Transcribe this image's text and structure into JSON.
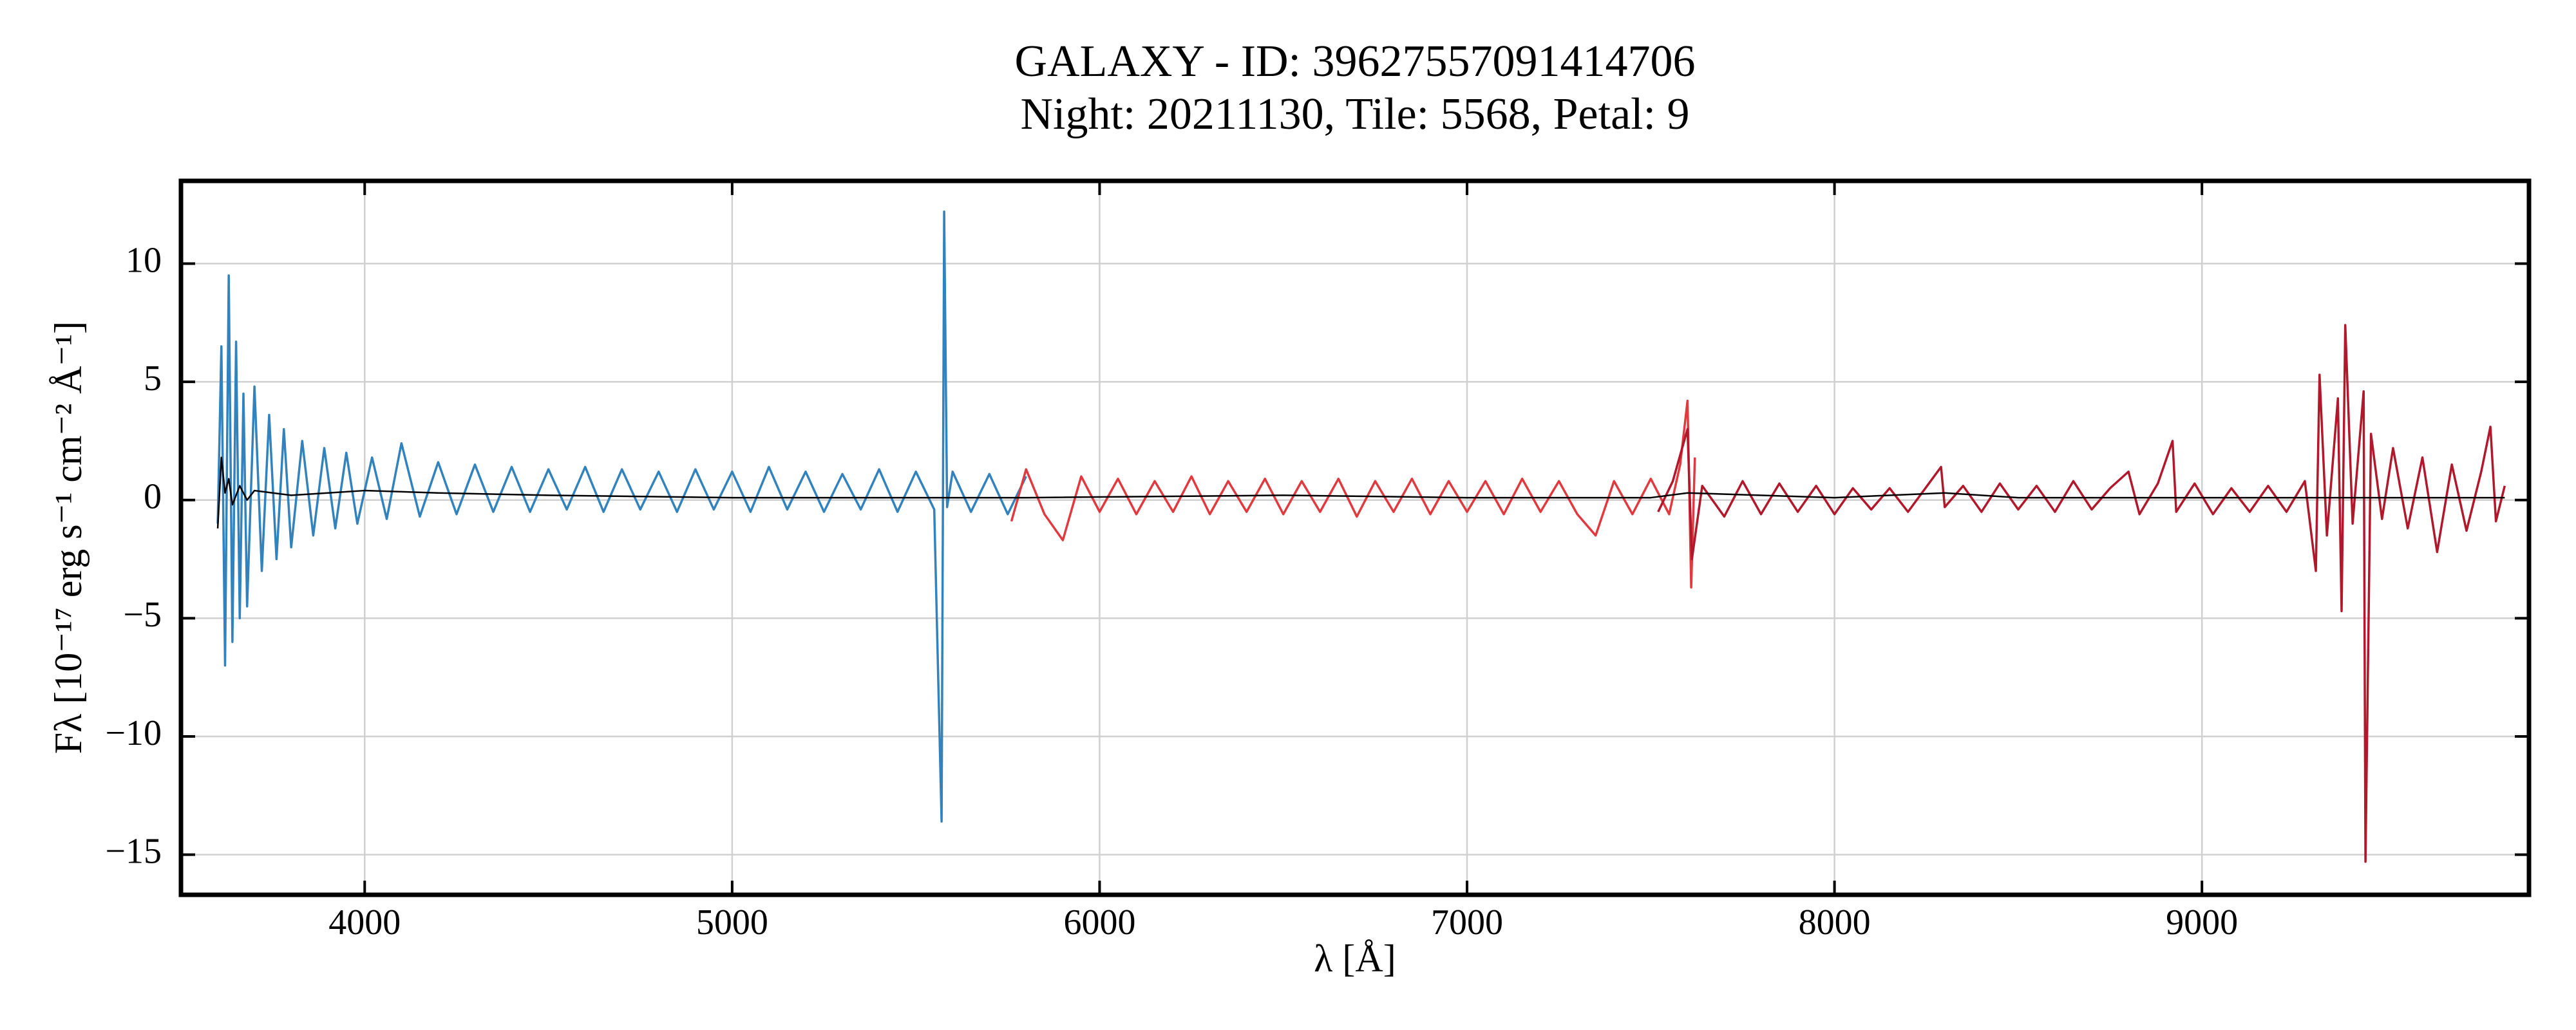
{
  "chart_data": {
    "type": "line",
    "title": "GALAXY - ID: 39627557091414706",
    "subtitle": "Night: 20211130, Tile: 5568, Petal: 9",
    "x_label": "λ [Å]",
    "y_label": "Fλ [10⁻¹⁷ erg s⁻¹ cm⁻² Å⁻¹]",
    "xlim": [
      3500,
      9890
    ],
    "ylim": [
      -16.7,
      13.5
    ],
    "xticks": [
      4000,
      5000,
      6000,
      7000,
      8000,
      9000
    ],
    "yticks": [
      {
        "value": -15,
        "label": "−15"
      },
      {
        "value": -10,
        "label": "−10"
      },
      {
        "value": -5,
        "label": "−5"
      },
      0,
      5,
      10
    ],
    "grid": true,
    "series": [
      {
        "color": "#3182bd",
        "x": [
          3600,
          3610,
          3620,
          3630,
          3640,
          3650,
          3660,
          3670,
          3680,
          3700,
          3720,
          3740,
          3760,
          3780,
          3800,
          3830,
          3860,
          3890,
          3920,
          3950,
          3980,
          4020,
          4060,
          4100,
          4150,
          4200,
          4250,
          4300,
          4350,
          4400,
          4450,
          4500,
          4550,
          4600,
          4650,
          4700,
          4750,
          4800,
          4850,
          4900,
          4950,
          5000,
          5050,
          5100,
          5150,
          5200,
          5250,
          5300,
          5350,
          5400,
          5450,
          5500,
          5550,
          5570,
          5577,
          5585,
          5600,
          5650,
          5700,
          5750,
          5800
        ],
        "values": [
          -1,
          6.5,
          -7,
          9.5,
          -6,
          6.7,
          -5,
          4.5,
          -4.5,
          4.8,
          -3,
          3.6,
          -2.5,
          3,
          -2,
          2.5,
          -1.5,
          2.2,
          -1.2,
          2,
          -1,
          1.8,
          -0.8,
          2.4,
          -0.7,
          1.6,
          -0.6,
          1.5,
          -0.5,
          1.4,
          -0.5,
          1.3,
          -0.4,
          1.4,
          -0.5,
          1.3,
          -0.4,
          1.2,
          -0.5,
          1.3,
          -0.4,
          1.2,
          -0.5,
          1.4,
          -0.4,
          1.2,
          -0.5,
          1.1,
          -0.4,
          1.3,
          -0.5,
          1.2,
          -0.4,
          -13.6,
          12.2,
          -0.3,
          1.2,
          -0.5,
          1.1,
          -0.6,
          1
        ]
      },
      {
        "color": "#e0393e",
        "x": [
          5760,
          5800,
          5850,
          5900,
          5950,
          6000,
          6050,
          6100,
          6150,
          6200,
          6250,
          6300,
          6350,
          6400,
          6450,
          6500,
          6550,
          6600,
          6650,
          6700,
          6750,
          6800,
          6850,
          6900,
          6950,
          7000,
          7050,
          7100,
          7150,
          7200,
          7250,
          7300,
          7350,
          7400,
          7450,
          7500,
          7550,
          7580,
          7600,
          7610,
          7620
        ],
        "values": [
          -0.9,
          1.3,
          -0.6,
          -1.7,
          1.0,
          -0.5,
          0.9,
          -0.6,
          0.8,
          -0.5,
          1.0,
          -0.6,
          0.8,
          -0.5,
          0.9,
          -0.6,
          0.8,
          -0.5,
          0.9,
          -0.7,
          0.8,
          -0.5,
          0.9,
          -0.6,
          0.8,
          -0.5,
          0.8,
          -0.6,
          0.9,
          -0.5,
          0.8,
          -0.6,
          -1.5,
          0.8,
          -0.6,
          0.9,
          -0.6,
          1.5,
          4.2,
          -3.7,
          1.8
        ]
      },
      {
        "color": "#b2182b",
        "x": [
          7520,
          7560,
          7600,
          7612,
          7640,
          7700,
          7750,
          7800,
          7850,
          7900,
          7950,
          8000,
          8050,
          8100,
          8150,
          8200,
          8290,
          8300,
          8350,
          8400,
          8450,
          8500,
          8550,
          8600,
          8650,
          8700,
          8750,
          8800,
          8830,
          8880,
          8920,
          8930,
          8980,
          9030,
          9080,
          9130,
          9180,
          9230,
          9280,
          9310,
          9320,
          9340,
          9370,
          9380,
          9390,
          9410,
          9440,
          9445,
          9460,
          9490,
          9520,
          9560,
          9600,
          9640,
          9680,
          9720,
          9760,
          9785,
          9800,
          9824
        ],
        "values": [
          -0.5,
          0.8,
          3.0,
          -2.5,
          0.6,
          -0.7,
          0.8,
          -0.6,
          0.7,
          -0.5,
          0.6,
          -0.6,
          0.5,
          -0.4,
          0.5,
          -0.5,
          1.4,
          -0.3,
          0.6,
          -0.5,
          0.7,
          -0.4,
          0.6,
          -0.5,
          0.8,
          -0.4,
          0.5,
          1.2,
          -0.6,
          0.7,
          2.5,
          -0.5,
          0.7,
          -0.6,
          0.5,
          -0.5,
          0.6,
          -0.5,
          0.8,
          -3,
          5.3,
          -1.5,
          4.3,
          -4.7,
          7.4,
          -1,
          4.6,
          -15.3,
          2.8,
          -0.8,
          2.2,
          -1.2,
          1.8,
          -2.2,
          1.5,
          -1.3,
          1.2,
          3.1,
          -0.9,
          0.6
        ]
      },
      {
        "color": "#000000",
        "x": [
          3600,
          3610,
          3620,
          3630,
          3640,
          3660,
          3680,
          3700,
          3750,
          3800,
          3900,
          4000,
          4200,
          4500,
          5000,
          5500,
          5800,
          6500,
          7000,
          7500,
          7600,
          8000,
          8300,
          8500,
          9000,
          9500,
          9824
        ],
        "values": [
          -1.2,
          1.8,
          0.3,
          0.9,
          -0.2,
          0.6,
          0,
          0.4,
          0.3,
          0.2,
          0.3,
          0.4,
          0.3,
          0.2,
          0.1,
          0.1,
          0.1,
          0.2,
          0.1,
          0.1,
          0.3,
          0.1,
          0.3,
          0.1,
          0.1,
          0.1,
          0.1
        ]
      }
    ]
  }
}
